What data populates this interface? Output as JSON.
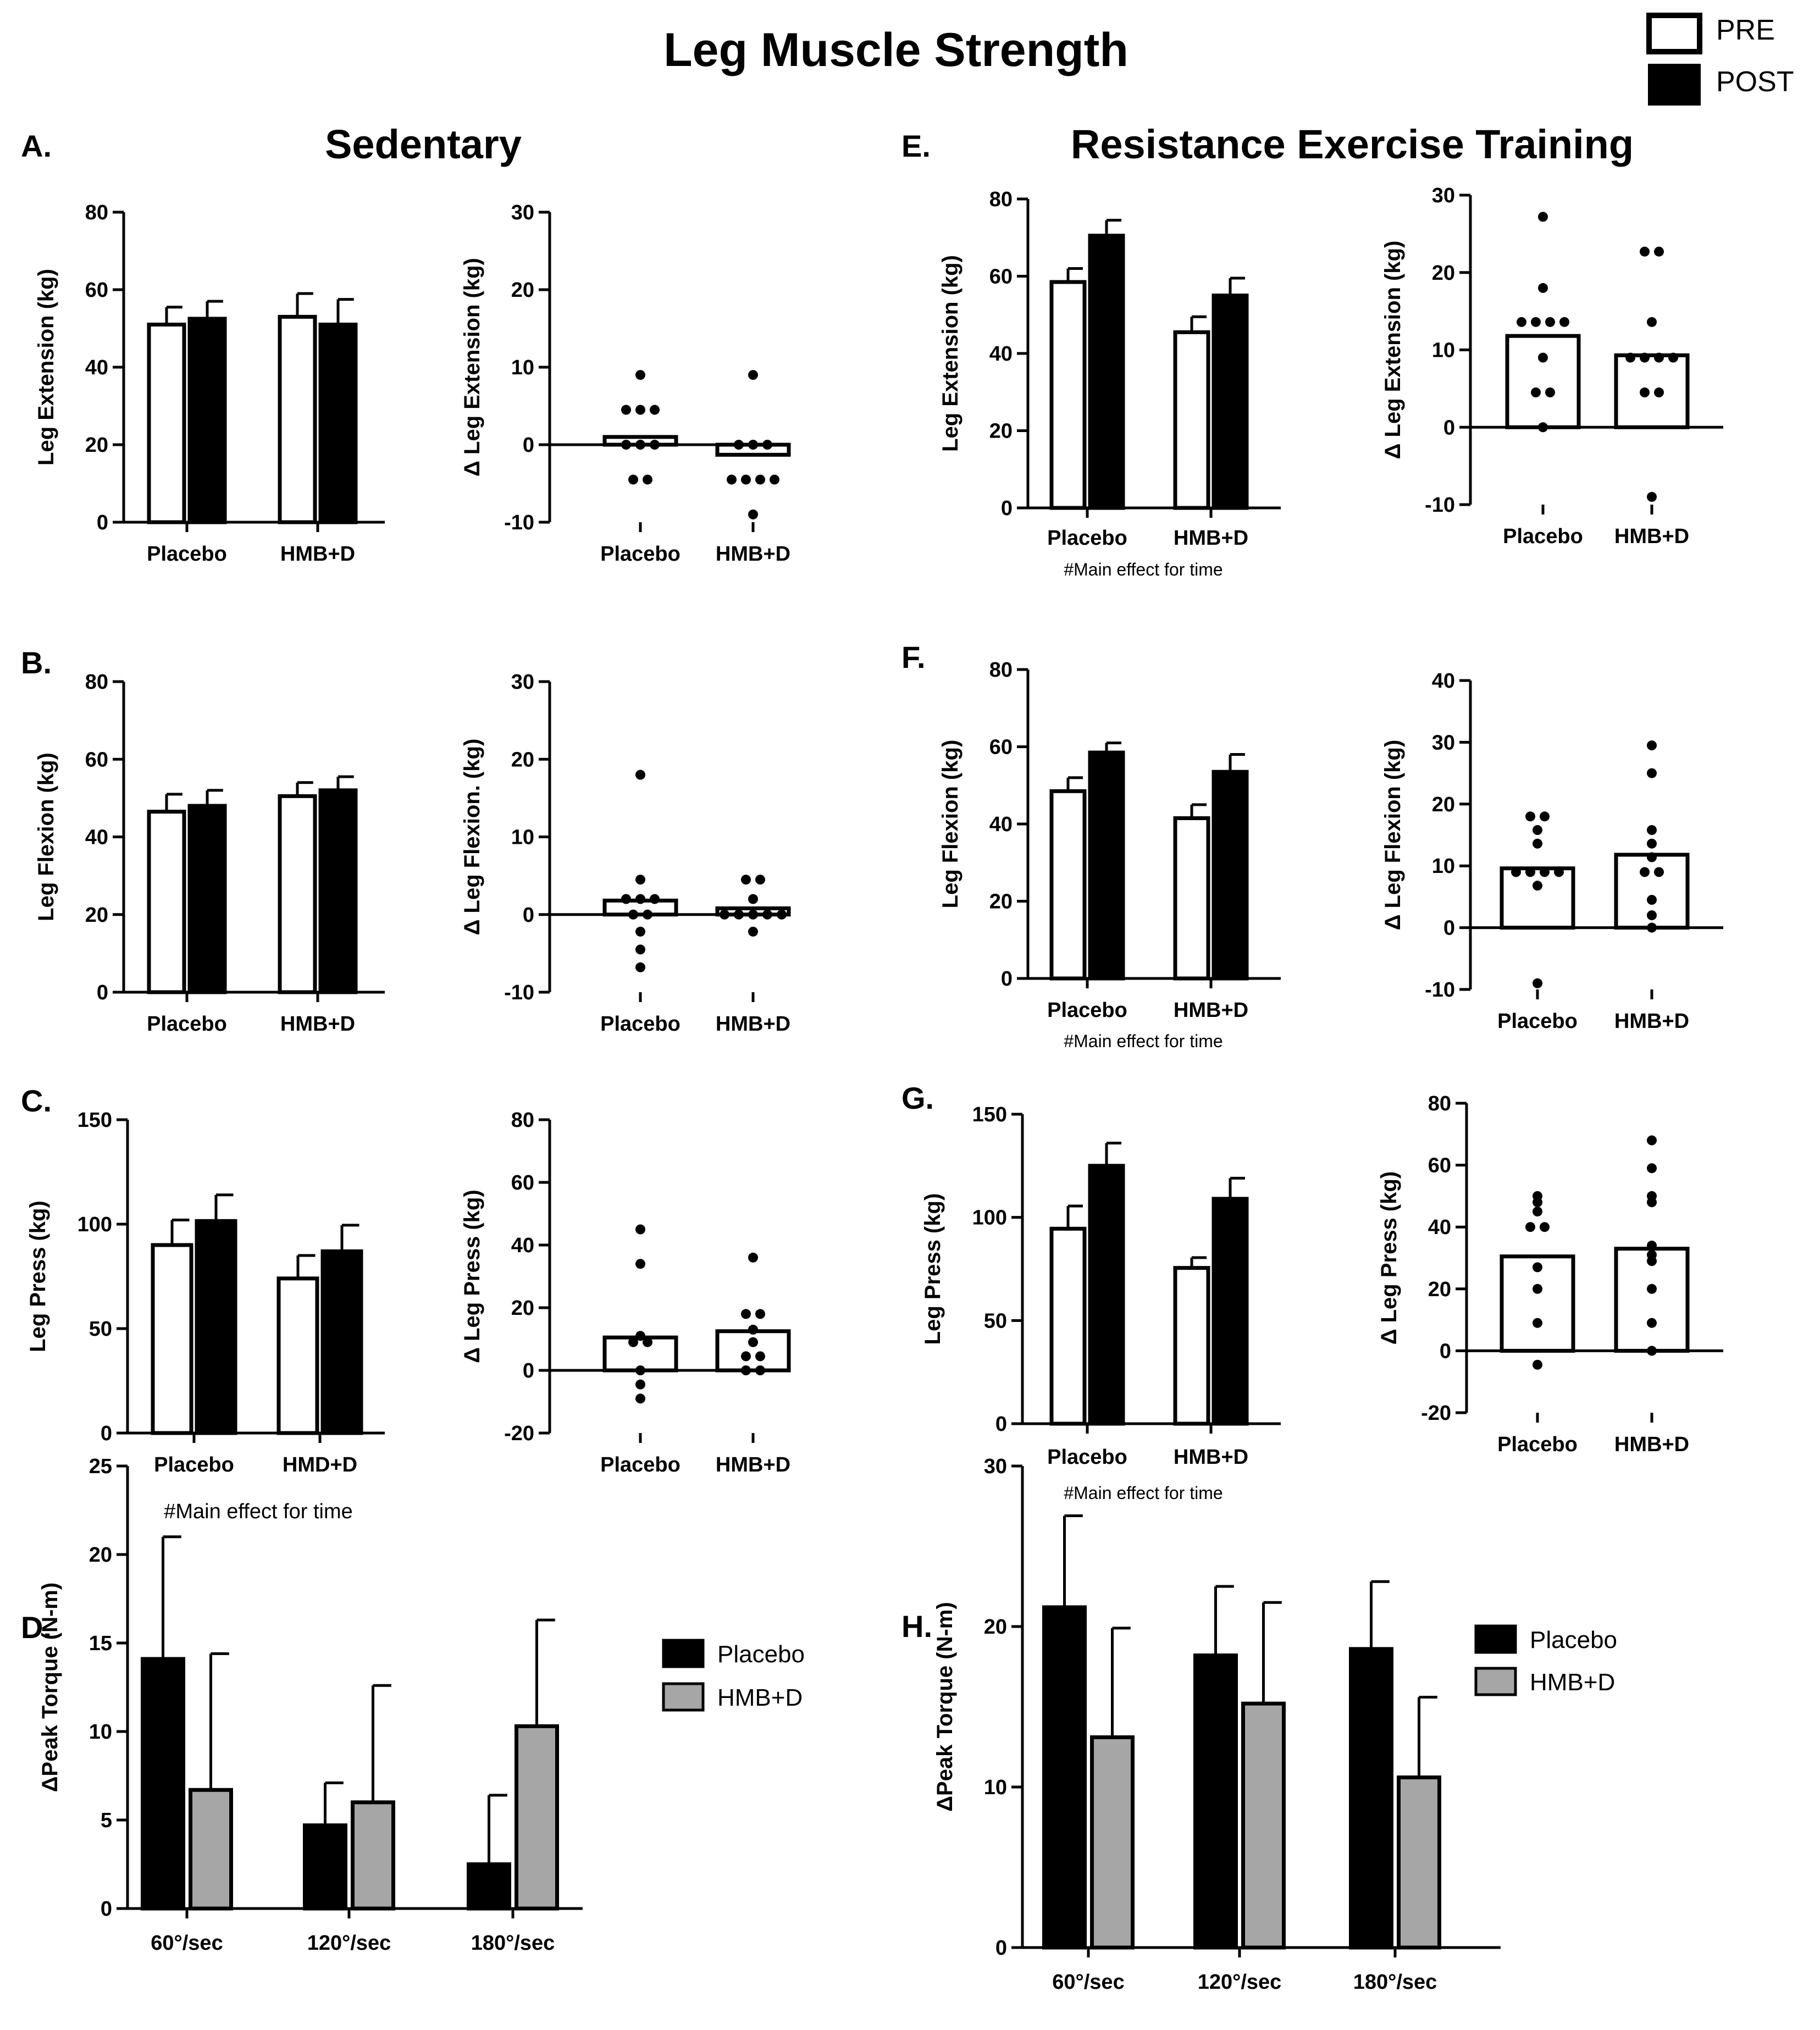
{
  "figure": {
    "title": "Leg Muscle Strength",
    "legend": [
      {
        "label": "PRE",
        "fill": "#ffffff"
      },
      {
        "label": "POST",
        "fill": "#000000"
      }
    ],
    "sections": [
      "Sedentary",
      "Resistance Exercise Training"
    ]
  },
  "colors": {
    "pre": "#ffffff",
    "post": "#000000",
    "placebo": "#000000",
    "hmbd": "#a6a6a6",
    "axis": "#000000"
  },
  "chart_data": [
    {
      "id": "A-bar",
      "panel": "A.",
      "type": "bar",
      "ylabel": "Leg Extension (kg)",
      "ylim": [
        0,
        80
      ],
      "yticks": [
        0,
        20,
        40,
        60,
        80
      ],
      "categories": [
        "Placebo",
        "HMB+D"
      ],
      "series": [
        {
          "name": "PRE",
          "values": [
            51,
            53
          ],
          "errors": [
            4.5,
            6
          ]
        },
        {
          "name": "POST",
          "values": [
            52.5,
            51
          ],
          "errors": [
            4.5,
            6.5
          ]
        }
      ]
    },
    {
      "id": "A-delta",
      "type": "dot-bar",
      "ylabel": "Δ Leg Extension (kg)",
      "ylim": [
        -10,
        30
      ],
      "yticks": [
        -10,
        0,
        10,
        20,
        30
      ],
      "categories": [
        "Placebo",
        "HMB+D"
      ],
      "means": [
        1,
        -1.3
      ],
      "points": [
        [
          9,
          4.5,
          4.5,
          4.5,
          0,
          0,
          0,
          -4.5,
          -4.5
        ],
        [
          9,
          0,
          0,
          0,
          -4.5,
          -4.5,
          -4.5,
          -4.5,
          -9
        ]
      ]
    },
    {
      "id": "B-bar",
      "panel": "B.",
      "type": "bar",
      "ylabel": "Leg Flexion (kg)",
      "ylim": [
        0,
        80
      ],
      "yticks": [
        0,
        20,
        40,
        60,
        80
      ],
      "categories": [
        "Placebo",
        "HMB+D"
      ],
      "series": [
        {
          "name": "PRE",
          "values": [
            46.5,
            50.5
          ],
          "errors": [
            4.5,
            3.5
          ]
        },
        {
          "name": "POST",
          "values": [
            48,
            52
          ],
          "errors": [
            4,
            3.5
          ]
        }
      ]
    },
    {
      "id": "B-delta",
      "type": "dot-bar",
      "ylabel": "Δ Leg Flexion. (kg)",
      "ylim": [
        -10,
        30
      ],
      "yticks": [
        -10,
        0,
        10,
        20,
        30
      ],
      "categories": [
        "Placebo",
        "HMB+D"
      ],
      "means": [
        1.8,
        0.8
      ],
      "points": [
        [
          18,
          4.5,
          2,
          2,
          2,
          0,
          0,
          -2.2,
          -4.5,
          -6.8
        ],
        [
          4.5,
          4.5,
          2,
          0,
          0,
          0,
          0,
          0,
          -2.2
        ]
      ]
    },
    {
      "id": "C-bar",
      "panel": "C.",
      "type": "bar",
      "ylabel": "Leg Press (kg)",
      "ylim": [
        0,
        150
      ],
      "yticks": [
        0,
        50,
        100,
        150
      ],
      "categories": [
        "Placebo",
        "HMD+D"
      ],
      "note": "#Main effect for time",
      "series": [
        {
          "name": "PRE",
          "values": [
            90,
            74
          ],
          "errors": [
            12,
            11
          ]
        },
        {
          "name": "POST",
          "values": [
            101.5,
            87
          ],
          "errors": [
            12.5,
            12.5
          ]
        }
      ]
    },
    {
      "id": "C-delta",
      "type": "dot-bar",
      "ylabel": "Δ Leg Press (kg)",
      "ylim": [
        -20,
        80
      ],
      "yticks": [
        -20,
        0,
        20,
        40,
        60,
        80
      ],
      "categories": [
        "Placebo",
        "HMB+D"
      ],
      "means": [
        10.5,
        12.5
      ],
      "points": [
        [
          45,
          34,
          11,
          9,
          9,
          0,
          -4.5,
          -9
        ],
        [
          36,
          18,
          18,
          13,
          9,
          4.5,
          4.5,
          0,
          0
        ]
      ]
    },
    {
      "id": "D",
      "panel": "D.",
      "type": "bar",
      "ylabel": "ΔPeak Torque (N-m)",
      "ylim": [
        0,
        25
      ],
      "yticks": [
        0,
        5,
        10,
        15,
        20,
        25
      ],
      "categories": [
        "60°/sec",
        "120°/sec",
        "180°/sec"
      ],
      "series": [
        {
          "name": "Placebo",
          "values": [
            14.1,
            4.7,
            2.5
          ],
          "errors": [
            6.9,
            2.4,
            3.9
          ]
        },
        {
          "name": "HMB+D",
          "values": [
            6.7,
            6,
            10.3
          ],
          "errors": [
            7.7,
            6.6,
            6
          ]
        }
      ]
    },
    {
      "id": "E-bar",
      "panel": "E.",
      "type": "bar",
      "ylabel": "Leg Extension (kg)",
      "ylim": [
        0,
        80
      ],
      "yticks": [
        0,
        20,
        40,
        60,
        80
      ],
      "categories": [
        "Placebo",
        "HMB+D"
      ],
      "note": "#Main effect for time",
      "series": [
        {
          "name": "PRE",
          "values": [
            58.5,
            45.5
          ],
          "errors": [
            3.5,
            4
          ]
        },
        {
          "name": "POST",
          "values": [
            70.5,
            55
          ],
          "errors": [
            4,
            4.5
          ]
        }
      ]
    },
    {
      "id": "E-delta",
      "type": "dot-bar",
      "ylabel": "Δ Leg Extension (kg)",
      "ylim": [
        -10,
        30
      ],
      "yticks": [
        -10,
        0,
        10,
        20,
        30
      ],
      "categories": [
        "Placebo",
        "HMB+D"
      ],
      "means": [
        11.8,
        9.3
      ],
      "points": [
        [
          27.2,
          18,
          13.6,
          13.6,
          13.6,
          13.6,
          9,
          4.5,
          4.5,
          0
        ],
        [
          22.7,
          22.7,
          13.6,
          9,
          9,
          9,
          9,
          4.5,
          4.5,
          -9
        ]
      ]
    },
    {
      "id": "F-bar",
      "panel": "F.",
      "type": "bar",
      "ylabel": "Leg Flexion (kg)",
      "ylim": [
        0,
        80
      ],
      "yticks": [
        0,
        20,
        40,
        60,
        80
      ],
      "categories": [
        "Placebo",
        "HMB+D"
      ],
      "note": "#Main effect for time",
      "series": [
        {
          "name": "PRE",
          "values": [
            48.5,
            41.5
          ],
          "errors": [
            3.5,
            3.5
          ]
        },
        {
          "name": "POST",
          "values": [
            58.5,
            53.5
          ],
          "errors": [
            2.5,
            4.5
          ]
        }
      ]
    },
    {
      "id": "F-delta",
      "type": "dot-bar",
      "ylabel": "Δ Leg Flexion (kg)",
      "ylim": [
        -10,
        40
      ],
      "yticks": [
        -10,
        0,
        10,
        20,
        30,
        40
      ],
      "categories": [
        "Placebo",
        "HMB+D"
      ],
      "means": [
        9.6,
        11.8
      ],
      "points": [
        [
          18,
          18,
          15.8,
          13.6,
          9,
          9,
          9,
          9,
          6.8,
          -9
        ],
        [
          29.5,
          25,
          15.8,
          13.6,
          11.4,
          9,
          9,
          4.5,
          2,
          0
        ]
      ]
    },
    {
      "id": "G-bar",
      "panel": "G.",
      "type": "bar",
      "ylabel": "Leg Press (kg)",
      "ylim": [
        0,
        150
      ],
      "yticks": [
        0,
        50,
        100,
        150
      ],
      "categories": [
        "Placebo",
        "HMB+D"
      ],
      "note": "#Main effect for time",
      "series": [
        {
          "name": "PRE",
          "values": [
            94.5,
            75.5
          ],
          "errors": [
            11,
            5
          ]
        },
        {
          "name": "POST",
          "values": [
            125,
            109
          ],
          "errors": [
            11,
            10
          ]
        }
      ]
    },
    {
      "id": "G-delta",
      "type": "dot-bar",
      "ylabel": "Δ Leg Press (kg)",
      "ylim": [
        -20,
        80
      ],
      "yticks": [
        -20,
        0,
        20,
        40,
        60,
        80
      ],
      "categories": [
        "Placebo",
        "HMB+D"
      ],
      "means": [
        30.5,
        33
      ],
      "points": [
        [
          50,
          48,
          45,
          40,
          40,
          27,
          20,
          9,
          -4.5
        ],
        [
          68,
          59,
          50,
          48,
          34,
          31,
          29,
          20,
          9,
          0
        ]
      ]
    },
    {
      "id": "H",
      "panel": "H.",
      "type": "bar",
      "ylabel": "ΔPeak Torque (N-m)",
      "ylim": [
        0,
        30
      ],
      "yticks": [
        0,
        10,
        20,
        30
      ],
      "categories": [
        "60°/sec",
        "120°/sec",
        "180°/sec"
      ],
      "series": [
        {
          "name": "Placebo",
          "values": [
            21.2,
            18.2,
            18.6
          ],
          "errors": [
            5.7,
            4.3,
            4.2
          ]
        },
        {
          "name": "HMB+D",
          "values": [
            13.1,
            15.2,
            10.6
          ],
          "errors": [
            6.8,
            6.3,
            5
          ]
        }
      ]
    }
  ]
}
